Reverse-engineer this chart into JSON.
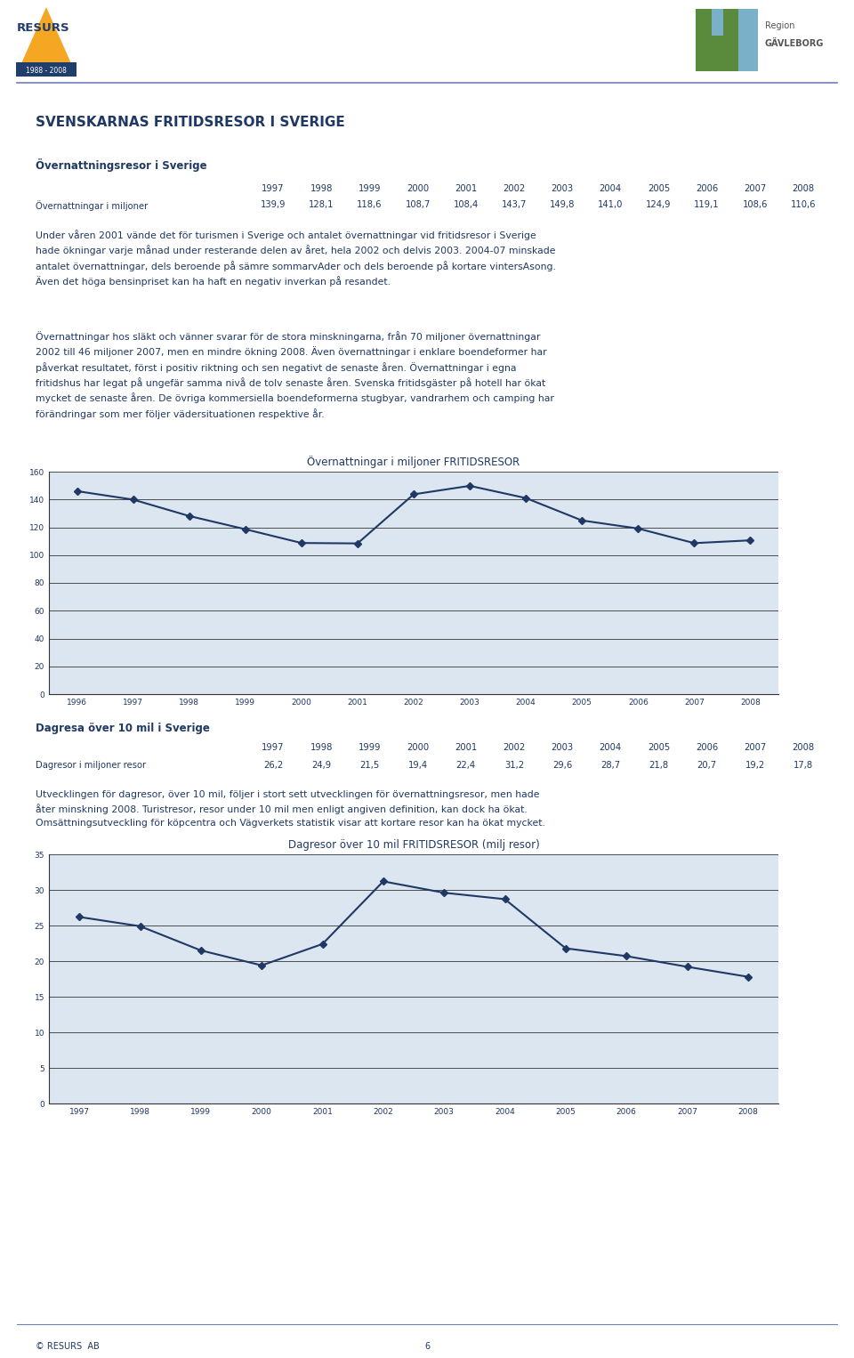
{
  "page_bg": "#ffffff",
  "text_color": "#1f3864",
  "main_title": "SVENSKARNAS FRITIDSRESOR I SVERIGE",
  "main_title_size": 11,
  "section1_title": "Övernattningsresor i Sverige",
  "section1_title_size": 8.5,
  "table1_years": [
    "1997",
    "1998",
    "1999",
    "2000",
    "2001",
    "2002",
    "2003",
    "2004",
    "2005",
    "2006",
    "2007",
    "2008"
  ],
  "table1_values": [
    "139,9",
    "128,1",
    "118,6",
    "108,7",
    "108,4",
    "143,7",
    "149,8",
    "141,0",
    "124,9",
    "119,1",
    "108,6",
    "110,6"
  ],
  "table1_label": "Övernattningar i miljoner",
  "body_text1a": "Under våren 2001 vände det för turismen i Sverige och antalet övernattningar vid fritidsresor i Sverige hade ökningar varje månad under resterande delen av året, hela 2002 och delvis 2003. 2004-07 minskade",
  "body_text1b": "antalet övernattningar, dels beroende på sämre sommarvAder och dels beroende på kortare vintersAsong.",
  "body_text1c": "Även det höga bensinpriset kan ha haft en negativ inverkan på resandet.",
  "body_text1": "Under våren 2001 vände det för turismen i Sverige och antalet övernattningar vid fritidsresor i Sverige\nhade ökningar varje månad under resterande delen av året, hela 2002 och delvis 2003. 2004-07 minskade\nantalet övernattningar, dels beroende på sämre sommarvAder och dels beroende på kortare vintersAsong.\nÄven det höga bensinpriset kan ha haft en negativ inverkan på resandet.",
  "body_text2": "Övernattningar hos släkt och vänner svarar för de stora minskningarna, från 70 miljoner övernattningar\n2002 till 46 miljoner 2007, men en mindre ökning 2008. Även övernattningar i enklare boendeformer har\npåverkat resultatet, först i positiv riktning och sen negativt de senaste åren. Övernattningar i egna\nfritidshus har legat på ungefär samma nivå de tolv senaste åren. Svenska fritidsgäster på hotell har ökat\nmycket de senaste åren. De övriga kommersiella boendeformerna stugbyar, vandrarhem och camping har\nförändringar som mer följer vädersituationen respektive år.",
  "chart1_title": "Övernattningar i miljoner FRITIDSRESOR",
  "chart1_title_size": 8.5,
  "chart1_x": [
    1996,
    1997,
    1998,
    1999,
    2000,
    2001,
    2002,
    2003,
    2004,
    2005,
    2006,
    2007,
    2008
  ],
  "chart1_y": [
    146.0,
    139.9,
    128.1,
    118.6,
    108.7,
    108.4,
    143.7,
    149.8,
    141.0,
    124.9,
    119.1,
    108.6,
    110.6
  ],
  "chart1_ylim": [
    0,
    160
  ],
  "chart1_yticks": [
    0,
    20,
    40,
    60,
    80,
    100,
    120,
    140,
    160
  ],
  "chart1_bg": "#dce6f1",
  "chart1_line_color": "#1f3864",
  "section2_title": "Dagresa över 10 mil i Sverige",
  "table2_years": [
    "1997",
    "1998",
    "1999",
    "2000",
    "2001",
    "2002",
    "2003",
    "2004",
    "2005",
    "2006",
    "2007",
    "2008"
  ],
  "table2_values": [
    "26,2",
    "24,9",
    "21,5",
    "19,4",
    "22,4",
    "31,2",
    "29,6",
    "28,7",
    "21,8",
    "20,7",
    "19,2",
    "17,8"
  ],
  "table2_label": "Dagresor i miljoner resor",
  "body_text3": "Utvecklingen för dagresor, över 10 mil, följer i stort sett utvecklingen för övernattningsresor, men hade\nåter minskning 2008. Turistresor, resor under 10 mil men enligt angiven definition, kan dock ha ökat.\nOmsättningsutveckling för köpcentra och Vägverkets statistik visar att kortare resor kan ha ökat mycket.",
  "chart2_title": "Dagresor över 10 mil FRITIDSRESOR (milj resor)",
  "chart2_title_size": 8.5,
  "chart2_x": [
    1997,
    1998,
    1999,
    2000,
    2001,
    2002,
    2003,
    2004,
    2005,
    2006,
    2007,
    2008
  ],
  "chart2_y": [
    26.2,
    24.9,
    21.5,
    19.4,
    22.4,
    31.2,
    29.6,
    28.7,
    21.8,
    20.7,
    19.2,
    17.8
  ],
  "chart2_ylim": [
    0,
    35
  ],
  "chart2_yticks": [
    0,
    5,
    10,
    15,
    20,
    25,
    30,
    35
  ],
  "chart2_bg": "#dce6f1",
  "chart2_line_color": "#1f3864",
  "footer_text": "© RESURS  AB",
  "footer_page": "6",
  "header_line_color": "#6e7fba",
  "body_font_size": 7.8,
  "table_font_size": 7.2
}
